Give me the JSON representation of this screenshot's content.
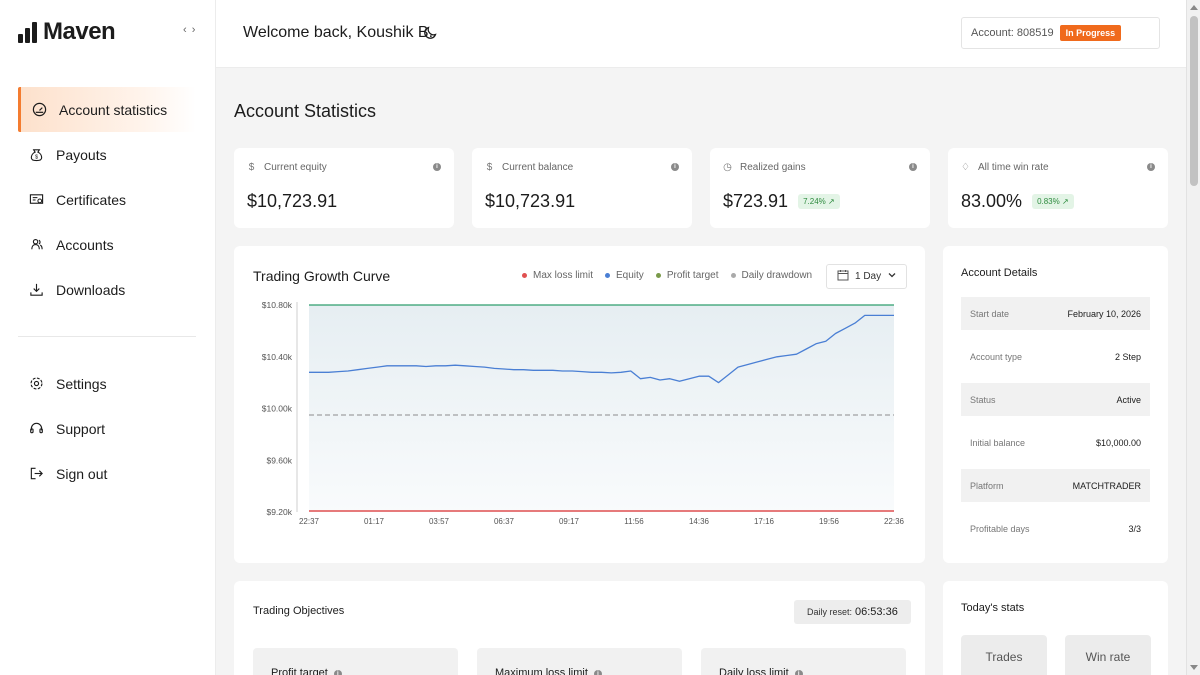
{
  "brand": {
    "name": "Maven"
  },
  "sidebar": {
    "top_items": [
      {
        "label": "Account statistics",
        "icon": "gauge-icon",
        "active": true
      },
      {
        "label": "Payouts",
        "icon": "money-bag-icon"
      },
      {
        "label": "Certificates",
        "icon": "certificate-icon"
      },
      {
        "label": "Accounts",
        "icon": "accounts-icon"
      },
      {
        "label": "Downloads",
        "icon": "download-icon"
      }
    ],
    "bottom_items": [
      {
        "label": "Settings",
        "icon": "gear-icon"
      },
      {
        "label": "Support",
        "icon": "headset-icon"
      },
      {
        "label": "Sign out",
        "icon": "sign-out-icon"
      }
    ]
  },
  "header": {
    "welcome": "Welcome back, Koushik B.",
    "account_label": "Account: 808519",
    "status_badge": "In Progress"
  },
  "main": {
    "title": "Account Statistics",
    "stats": [
      {
        "label": "Current equity",
        "value": "$10,723.91",
        "icon": "dollar-icon"
      },
      {
        "label": "Current balance",
        "value": "$10,723.91",
        "icon": "dollar-icon"
      },
      {
        "label": "Realized gains",
        "value": "$723.91",
        "change": "7.24% ↗",
        "icon": "clock-icon"
      },
      {
        "label": "All time win rate",
        "value": "83.00%",
        "change": "0.83% ↗",
        "icon": "trophy-icon"
      }
    ]
  },
  "chart": {
    "title": "Trading Growth Curve",
    "legend": [
      "Max loss limit",
      "Equity",
      "Profit target",
      "Daily drawdown"
    ],
    "range": "1 Day"
  },
  "chart_data": {
    "type": "line",
    "title": "Trading Growth Curve",
    "x_ticks": [
      "22:37",
      "01:17",
      "03:57",
      "06:37",
      "09:17",
      "11:56",
      "14:36",
      "17:16",
      "19:56",
      "22:36"
    ],
    "y_ticks": [
      "$10.80k",
      "$10.40k",
      "$10.00k",
      "$9.60k",
      "$9.20k"
    ],
    "ylim": [
      9200,
      10800
    ],
    "series": [
      {
        "name": "Equity",
        "color": "#4a7fd4",
        "values": [
          10280,
          10280,
          10280,
          10285,
          10290,
          10300,
          10310,
          10320,
          10330,
          10330,
          10330,
          10330,
          10325,
          10330,
          10330,
          10335,
          10330,
          10325,
          10320,
          10310,
          10305,
          10300,
          10300,
          10295,
          10295,
          10295,
          10290,
          10290,
          10285,
          10280,
          10280,
          10275,
          10280,
          10290,
          10230,
          10240,
          10220,
          10230,
          10210,
          10230,
          10250,
          10250,
          10200,
          10260,
          10320,
          10340,
          10360,
          10380,
          10400,
          10410,
          10420,
          10460,
          10500,
          10520,
          10580,
          10620,
          10660,
          10720,
          10720,
          10720,
          10720
        ]
      },
      {
        "name": "Profit target",
        "color": "#2e9e6d",
        "values": [
          10800,
          10800
        ]
      },
      {
        "name": "Daily drawdown",
        "color": "#8c8c8c",
        "values": [
          9950,
          9950
        ]
      },
      {
        "name": "Max loss limit",
        "color": "#e05050",
        "values": [
          9200,
          9200
        ]
      }
    ],
    "grid": false,
    "legend_position": "top-right"
  },
  "details": {
    "title": "Account Details",
    "rows": [
      {
        "k": "Start date",
        "v": "February 10, 2026"
      },
      {
        "k": "Account type",
        "v": "2 Step"
      },
      {
        "k": "Status",
        "v": "Active"
      },
      {
        "k": "Initial balance",
        "v": "$10,000.00"
      },
      {
        "k": "Platform",
        "v": "MATCHTRADER"
      },
      {
        "k": "Profitable days",
        "v": "3/3"
      }
    ]
  },
  "objectives": {
    "title": "Trading Objectives",
    "reset_label": "Daily reset:",
    "reset_time": "06:53:36",
    "items": [
      "Profit target",
      "Maximum loss limit",
      "Daily loss limit"
    ]
  },
  "today": {
    "title": "Today's stats",
    "buttons": [
      "Trades",
      "Win rate"
    ]
  },
  "colors": {
    "accent": "#f47c30",
    "badge": "#f06a1c",
    "equity": "#4a7fd4",
    "profit": "#2e9e6d",
    "loss": "#e05050"
  }
}
